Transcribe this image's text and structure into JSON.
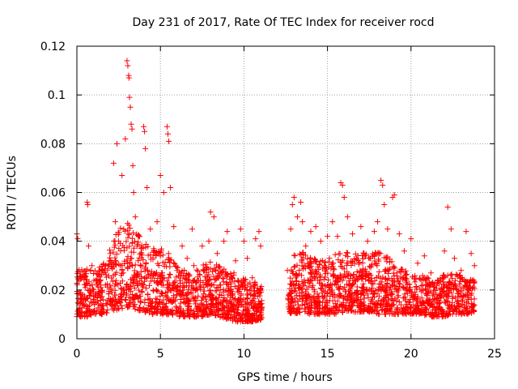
{
  "chart_data": {
    "type": "scatter",
    "title": "Day 231 of 2017, Rate Of TEC Index for receiver rocd",
    "xlabel": "GPS time / hours",
    "ylabel": "ROTI / TECUs",
    "xlim": [
      0,
      25
    ],
    "ylim": [
      0,
      0.12
    ],
    "x_ticks": [
      0,
      5,
      10,
      15,
      20,
      25
    ],
    "y_ticks": [
      0,
      0.02,
      0.04,
      0.06,
      0.08,
      0.1,
      0.12
    ],
    "x_tick_labels": [
      "0",
      "5",
      "10",
      "15",
      "20",
      "25"
    ],
    "y_tick_labels": [
      "0",
      "0.02",
      "0.04",
      "0.06",
      "0.08",
      "0.1",
      "0.12"
    ],
    "grid": true,
    "marker": "+",
    "color": "#ff0000",
    "series": [
      {
        "points": [
          [
            0.0,
            0.043
          ],
          [
            0.05,
            0.041
          ],
          [
            0.1,
            0.012
          ],
          [
            0.2,
            0.018
          ],
          [
            0.3,
            0.025
          ],
          [
            0.4,
            0.014
          ],
          [
            0.5,
            0.021
          ],
          [
            0.6,
            0.009
          ],
          [
            0.62,
            0.056
          ],
          [
            0.65,
            0.055
          ],
          [
            0.7,
            0.038
          ],
          [
            0.8,
            0.019
          ],
          [
            0.9,
            0.03
          ],
          [
            1.0,
            0.016
          ],
          [
            1.2,
            0.022
          ],
          [
            1.4,
            0.011
          ],
          [
            1.6,
            0.027
          ],
          [
            1.8,
            0.014
          ],
          [
            2.0,
            0.035
          ],
          [
            2.1,
            0.019
          ],
          [
            2.2,
            0.072
          ],
          [
            2.3,
            0.048
          ],
          [
            2.4,
            0.08
          ],
          [
            2.5,
            0.04
          ],
          [
            2.6,
            0.03
          ],
          [
            2.7,
            0.067
          ],
          [
            2.8,
            0.045
          ],
          [
            2.9,
            0.082
          ],
          [
            3.0,
            0.114
          ],
          [
            3.05,
            0.112
          ],
          [
            3.1,
            0.108
          ],
          [
            3.12,
            0.107
          ],
          [
            3.15,
            0.099
          ],
          [
            3.2,
            0.095
          ],
          [
            3.25,
            0.088
          ],
          [
            3.3,
            0.086
          ],
          [
            3.35,
            0.071
          ],
          [
            3.4,
            0.06
          ],
          [
            3.5,
            0.05
          ],
          [
            3.6,
            0.038
          ],
          [
            3.7,
            0.042
          ],
          [
            3.8,
            0.03
          ],
          [
            4.0,
            0.087
          ],
          [
            4.05,
            0.085
          ],
          [
            4.1,
            0.078
          ],
          [
            4.2,
            0.062
          ],
          [
            4.4,
            0.045
          ],
          [
            4.6,
            0.037
          ],
          [
            4.8,
            0.048
          ],
          [
            5.0,
            0.067
          ],
          [
            5.2,
            0.06
          ],
          [
            5.4,
            0.087
          ],
          [
            5.45,
            0.084
          ],
          [
            5.5,
            0.081
          ],
          [
            5.6,
            0.062
          ],
          [
            5.8,
            0.046
          ],
          [
            6.0,
            0.028
          ],
          [
            6.3,
            0.038
          ],
          [
            6.6,
            0.033
          ],
          [
            6.9,
            0.045
          ],
          [
            7.0,
            0.03
          ],
          [
            7.5,
            0.038
          ],
          [
            7.9,
            0.04
          ],
          [
            8.0,
            0.052
          ],
          [
            8.2,
            0.05
          ],
          [
            8.4,
            0.035
          ],
          [
            8.8,
            0.04
          ],
          [
            9.0,
            0.044
          ],
          [
            9.4,
            0.027
          ],
          [
            9.5,
            0.032
          ],
          [
            9.8,
            0.045
          ],
          [
            10.0,
            0.04
          ],
          [
            10.2,
            0.033
          ],
          [
            10.5,
            0.025
          ],
          [
            10.7,
            0.041
          ],
          [
            10.9,
            0.044
          ],
          [
            11.0,
            0.038
          ],
          [
            12.6,
            0.028
          ],
          [
            12.8,
            0.045
          ],
          [
            12.9,
            0.055
          ],
          [
            13.0,
            0.058
          ],
          [
            13.2,
            0.05
          ],
          [
            13.4,
            0.056
          ],
          [
            13.5,
            0.048
          ],
          [
            13.7,
            0.038
          ],
          [
            14.0,
            0.044
          ],
          [
            14.3,
            0.046
          ],
          [
            14.6,
            0.04
          ],
          [
            15.0,
            0.042
          ],
          [
            15.3,
            0.048
          ],
          [
            15.6,
            0.042
          ],
          [
            15.8,
            0.064
          ],
          [
            15.9,
            0.063
          ],
          [
            16.0,
            0.058
          ],
          [
            16.2,
            0.05
          ],
          [
            16.5,
            0.043
          ],
          [
            17.0,
            0.046
          ],
          [
            17.4,
            0.04
          ],
          [
            17.8,
            0.044
          ],
          [
            18.0,
            0.048
          ],
          [
            18.2,
            0.065
          ],
          [
            18.3,
            0.063
          ],
          [
            18.4,
            0.055
          ],
          [
            18.6,
            0.045
          ],
          [
            18.9,
            0.058
          ],
          [
            19.0,
            0.059
          ],
          [
            19.3,
            0.043
          ],
          [
            19.6,
            0.036
          ],
          [
            20.0,
            0.041
          ],
          [
            20.4,
            0.031
          ],
          [
            20.8,
            0.034
          ],
          [
            21.2,
            0.027
          ],
          [
            21.6,
            0.024
          ],
          [
            22.0,
            0.036
          ],
          [
            22.2,
            0.054
          ],
          [
            22.4,
            0.045
          ],
          [
            22.6,
            0.033
          ],
          [
            23.0,
            0.028
          ],
          [
            23.3,
            0.044
          ],
          [
            23.6,
            0.035
          ],
          [
            23.8,
            0.03
          ]
        ]
      }
    ],
    "point_density": {
      "segments": [
        {
          "x_range": [
            0,
            11.1
          ],
          "cloud": [
            [
              0,
              0.009,
              0.028
            ],
            [
              0.5,
              0.009,
              0.03
            ],
            [
              1,
              0.01,
              0.028
            ],
            [
              1.5,
              0.01,
              0.03
            ],
            [
              2,
              0.011,
              0.038
            ],
            [
              2.5,
              0.012,
              0.045
            ],
            [
              3,
              0.013,
              0.048
            ],
            [
              3.5,
              0.012,
              0.045
            ],
            [
              4,
              0.011,
              0.04
            ],
            [
              4.5,
              0.01,
              0.036
            ],
            [
              5,
              0.01,
              0.038
            ],
            [
              5.5,
              0.01,
              0.035
            ],
            [
              6,
              0.009,
              0.03
            ],
            [
              6.5,
              0.009,
              0.03
            ],
            [
              7,
              0.009,
              0.028
            ],
            [
              7.5,
              0.009,
              0.03
            ],
            [
              8,
              0.01,
              0.032
            ],
            [
              8.5,
              0.009,
              0.03
            ],
            [
              9,
              0.008,
              0.028
            ],
            [
              9.5,
              0.007,
              0.026
            ],
            [
              10,
              0.007,
              0.025
            ],
            [
              10.5,
              0.007,
              0.024
            ],
            [
              11.1,
              0.008,
              0.022
            ]
          ]
        },
        {
          "x_range": [
            12.6,
            23.8
          ],
          "cloud": [
            [
              12.6,
              0.01,
              0.02
            ],
            [
              13,
              0.01,
              0.035
            ],
            [
              13.5,
              0.011,
              0.036
            ],
            [
              14,
              0.01,
              0.034
            ],
            [
              14.5,
              0.01,
              0.032
            ],
            [
              15,
              0.01,
              0.033
            ],
            [
              15.5,
              0.01,
              0.035
            ],
            [
              16,
              0.011,
              0.036
            ],
            [
              16.5,
              0.011,
              0.034
            ],
            [
              17,
              0.011,
              0.036
            ],
            [
              17.5,
              0.011,
              0.035
            ],
            [
              18,
              0.01,
              0.036
            ],
            [
              18.5,
              0.01,
              0.034
            ],
            [
              19,
              0.01,
              0.032
            ],
            [
              19.5,
              0.01,
              0.03
            ],
            [
              20,
              0.01,
              0.028
            ],
            [
              20.5,
              0.01,
              0.027
            ],
            [
              21,
              0.009,
              0.025
            ],
            [
              21.5,
              0.009,
              0.025
            ],
            [
              22,
              0.009,
              0.027
            ],
            [
              22.5,
              0.01,
              0.027
            ],
            [
              23,
              0.01,
              0.026
            ],
            [
              23.5,
              0.01,
              0.025
            ],
            [
              23.8,
              0.011,
              0.024
            ]
          ]
        }
      ],
      "points_per_hour": 120
    }
  }
}
